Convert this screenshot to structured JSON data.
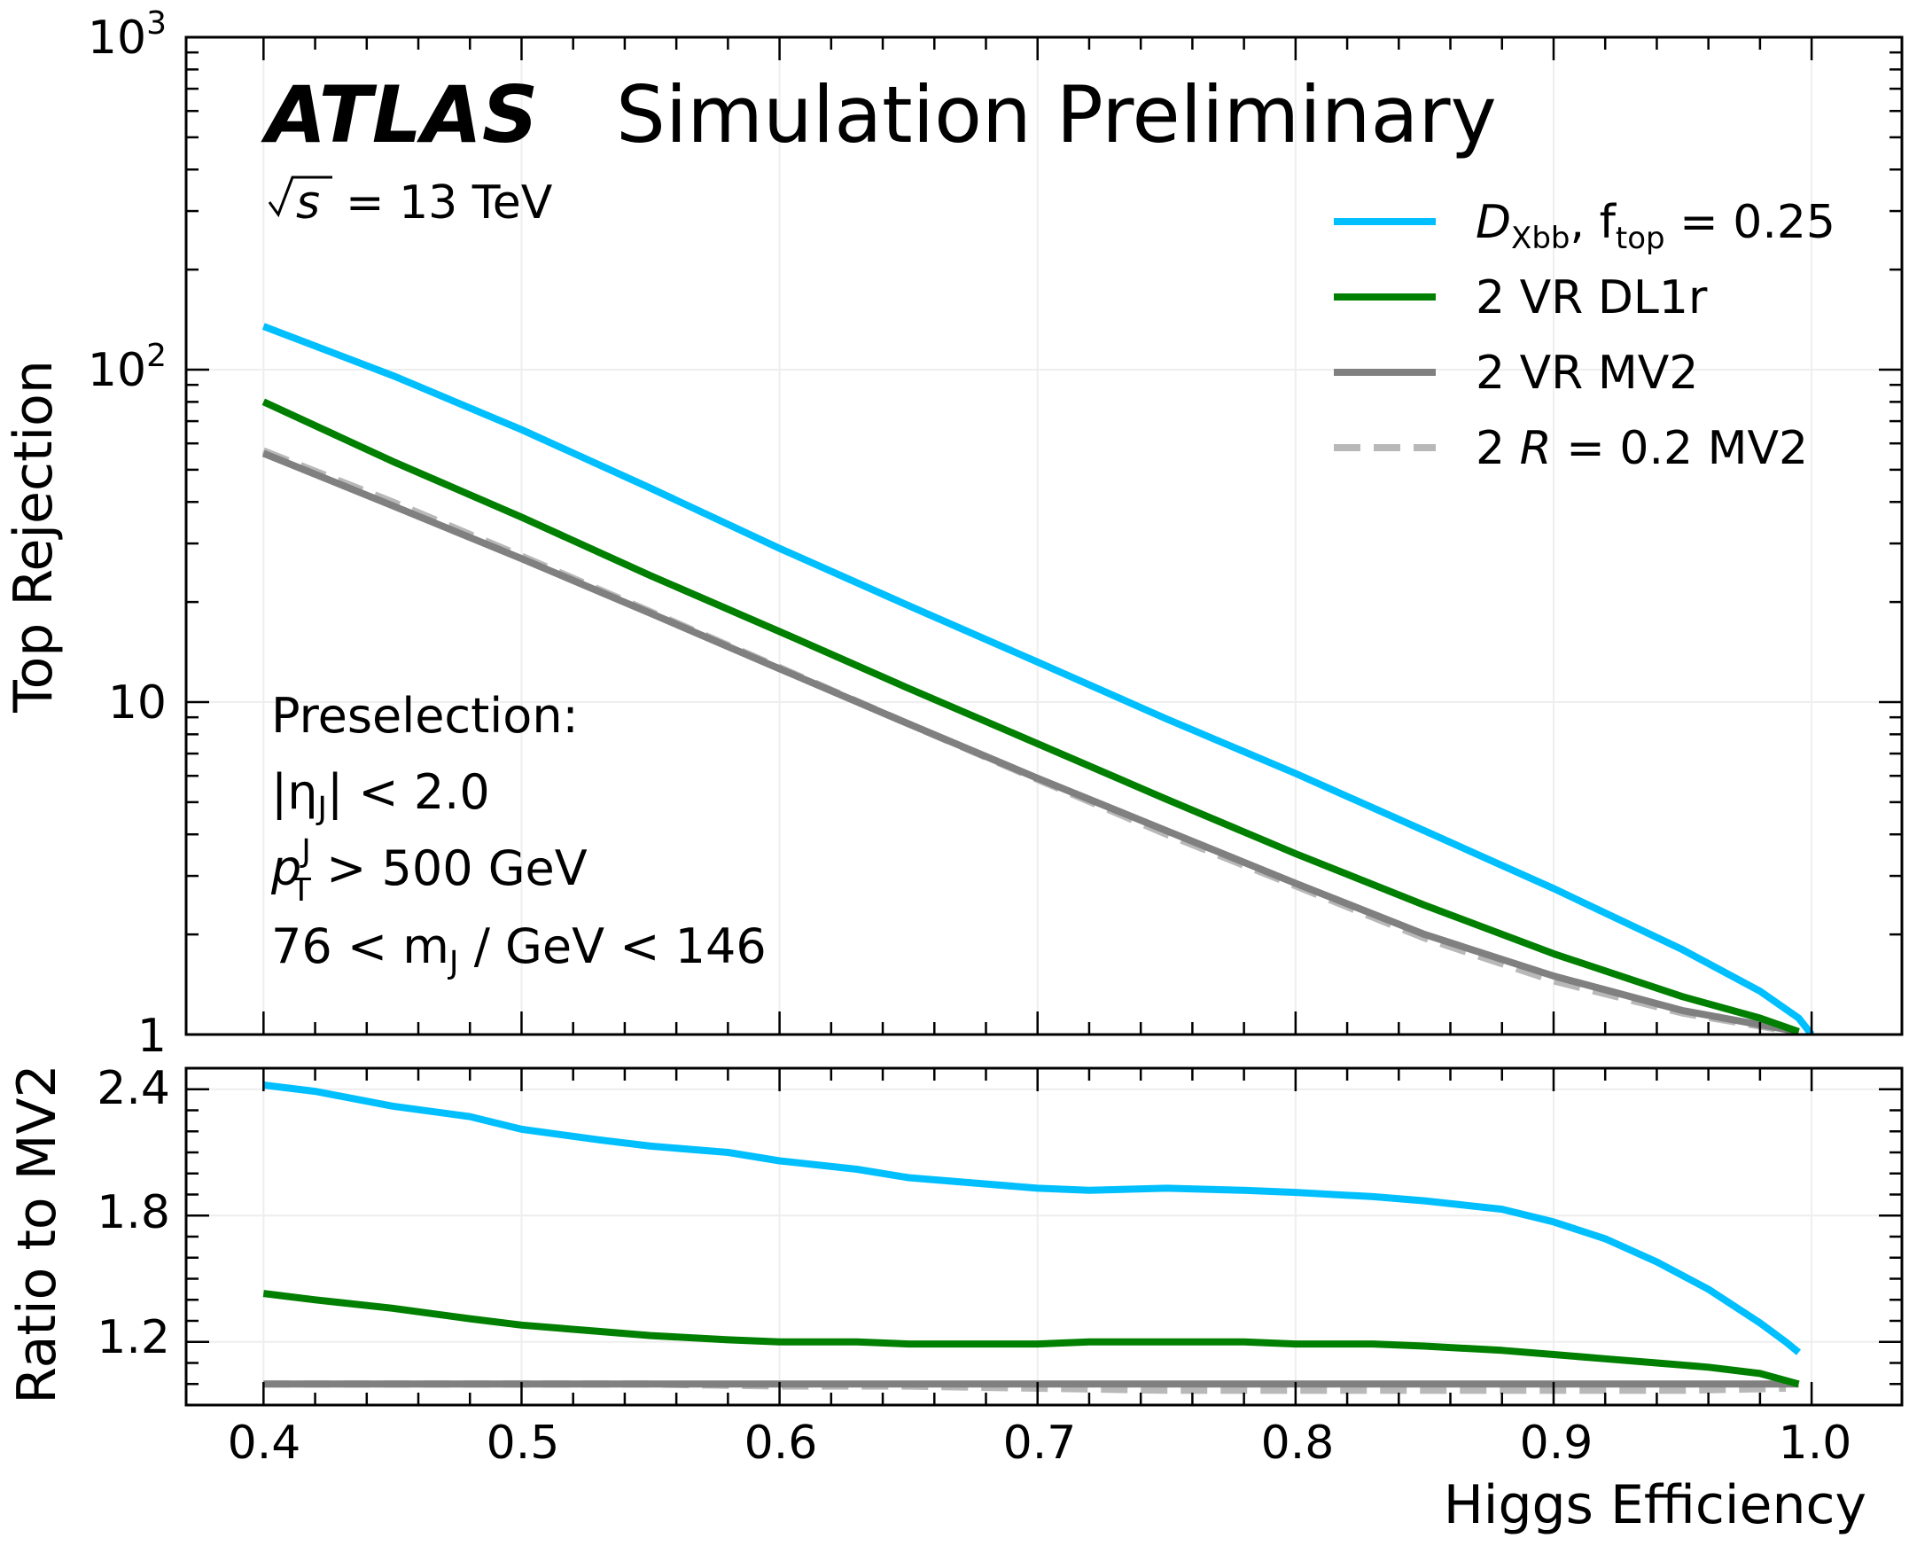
{
  "chart_data": [
    {
      "type": "line",
      "panel": "main",
      "title": "",
      "annotations": {
        "experiment": "ATLAS",
        "status": "Simulation Preliminary",
        "energy": {
          "prefix": "s",
          "value": "= 13 TeV"
        },
        "selection_title": "Preselection:",
        "cut_eta": {
          "left": "|η",
          "sub": "J",
          "right": "| < 2.0"
        },
        "cut_pt": {
          "main": "p",
          "sup": "J",
          "sub": "T",
          "right": " > 500 GeV"
        },
        "cut_mass": {
          "left": "76 < m",
          "sub": "J",
          "right": " / GeV < 146"
        }
      },
      "xlabel": "",
      "ylabel": "Top Rejection",
      "yscale": "log",
      "xlim": [
        0.37,
        1.035
      ],
      "ylim": [
        1,
        1000
      ],
      "yticks": [
        {
          "value": 1,
          "label": "1"
        },
        {
          "value": 10,
          "label": "10"
        },
        {
          "value": 100,
          "base": "10",
          "exp": "2"
        },
        {
          "value": 1000,
          "base": "10",
          "exp": "3"
        }
      ],
      "grid": true,
      "legend_position": "top-right",
      "series": [
        {
          "key": "dxbb",
          "legend": {
            "main": "D",
            "sub1": "Xbb",
            "mid": ", f",
            "sub2": "top",
            "right": " = 0.25"
          },
          "color": "#00bfff",
          "dashed": false,
          "x": [
            0.4,
            0.45,
            0.5,
            0.55,
            0.6,
            0.65,
            0.7,
            0.75,
            0.8,
            0.85,
            0.9,
            0.95,
            0.98,
            0.995,
            1.0
          ],
          "y": [
            135,
            96,
            66,
            44,
            29,
            19.5,
            13.2,
            8.9,
            6.1,
            4.1,
            2.75,
            1.8,
            1.35,
            1.12,
            1.0
          ]
        },
        {
          "key": "dl1r",
          "legend": {
            "text": "2 VR DL1r"
          },
          "color": "#007f00",
          "dashed": false,
          "x": [
            0.4,
            0.45,
            0.5,
            0.55,
            0.6,
            0.65,
            0.7,
            0.75,
            0.8,
            0.85,
            0.9,
            0.95,
            0.98,
            0.995
          ],
          "y": [
            80,
            53,
            36,
            24,
            16.3,
            11,
            7.5,
            5.1,
            3.5,
            2.45,
            1.75,
            1.3,
            1.12,
            1.02
          ]
        },
        {
          "key": "mv2",
          "legend": {
            "text": "2 VR MV2"
          },
          "color": "#808080",
          "dashed": false,
          "x": [
            0.4,
            0.45,
            0.5,
            0.55,
            0.6,
            0.65,
            0.7,
            0.75,
            0.8,
            0.85,
            0.9,
            0.95,
            0.98,
            0.995
          ],
          "y": [
            56,
            39,
            27,
            18.5,
            12.6,
            8.6,
            5.9,
            4.1,
            2.85,
            2.0,
            1.5,
            1.18,
            1.07,
            1.02
          ]
        },
        {
          "key": "r02",
          "legend": {
            "pre": "2 ",
            "italic": "R",
            "right": " = 0.2 MV2"
          },
          "color": "#b8b8b8",
          "dashed": true,
          "x": [
            0.4,
            0.45,
            0.5,
            0.55,
            0.6,
            0.65,
            0.7,
            0.75,
            0.8,
            0.85,
            0.9,
            0.95,
            0.98,
            0.995
          ],
          "y": [
            57,
            40,
            27.5,
            18.7,
            12.7,
            8.6,
            5.85,
            4.0,
            2.8,
            1.95,
            1.45,
            1.16,
            1.06,
            1.01
          ]
        }
      ]
    },
    {
      "type": "line",
      "panel": "ratio",
      "title": "",
      "xlabel": "Higgs Efficiency",
      "ylabel": "Ratio to MV2",
      "xlim": [
        0.37,
        1.035
      ],
      "ylim": [
        0.9,
        2.5
      ],
      "xticks": [
        "0.4",
        "0.5",
        "0.6",
        "0.7",
        "0.8",
        "0.9",
        "1.0"
      ],
      "yticks": [
        "1.2",
        "1.8",
        "2.4"
      ],
      "grid": true,
      "series": [
        {
          "key": "dxbb",
          "color": "#00bfff",
          "dashed": false,
          "x": [
            0.4,
            0.42,
            0.45,
            0.48,
            0.5,
            0.53,
            0.55,
            0.58,
            0.6,
            0.63,
            0.65,
            0.68,
            0.7,
            0.72,
            0.75,
            0.78,
            0.8,
            0.83,
            0.85,
            0.88,
            0.9,
            0.92,
            0.94,
            0.96,
            0.98,
            0.99,
            0.995
          ],
          "y": [
            2.42,
            2.39,
            2.32,
            2.27,
            2.21,
            2.16,
            2.13,
            2.1,
            2.06,
            2.02,
            1.98,
            1.95,
            1.93,
            1.92,
            1.93,
            1.92,
            1.91,
            1.89,
            1.87,
            1.83,
            1.77,
            1.69,
            1.58,
            1.45,
            1.29,
            1.2,
            1.15
          ]
        },
        {
          "key": "dl1r",
          "color": "#007f00",
          "dashed": false,
          "x": [
            0.4,
            0.42,
            0.45,
            0.48,
            0.5,
            0.53,
            0.55,
            0.58,
            0.6,
            0.63,
            0.65,
            0.68,
            0.7,
            0.72,
            0.75,
            0.78,
            0.8,
            0.83,
            0.85,
            0.88,
            0.9,
            0.92,
            0.94,
            0.96,
            0.98,
            0.995
          ],
          "y": [
            1.43,
            1.4,
            1.36,
            1.31,
            1.28,
            1.25,
            1.23,
            1.21,
            1.2,
            1.2,
            1.19,
            1.19,
            1.19,
            1.2,
            1.2,
            1.2,
            1.19,
            1.19,
            1.18,
            1.16,
            1.14,
            1.12,
            1.1,
            1.08,
            1.05,
            1.0
          ]
        },
        {
          "key": "mv2",
          "color": "#808080",
          "dashed": false,
          "x": [
            0.4,
            0.995
          ],
          "y": [
            1.0,
            1.0
          ]
        },
        {
          "key": "r02",
          "color": "#b8b8b8",
          "dashed": true,
          "x": [
            0.4,
            0.45,
            0.5,
            0.55,
            0.6,
            0.65,
            0.7,
            0.75,
            0.8,
            0.85,
            0.9,
            0.95,
            0.99
          ],
          "y": [
            1.0,
            1.0,
            1.0,
            1.0,
            0.99,
            0.99,
            0.98,
            0.97,
            0.97,
            0.97,
            0.97,
            0.97,
            0.98
          ]
        }
      ]
    }
  ]
}
